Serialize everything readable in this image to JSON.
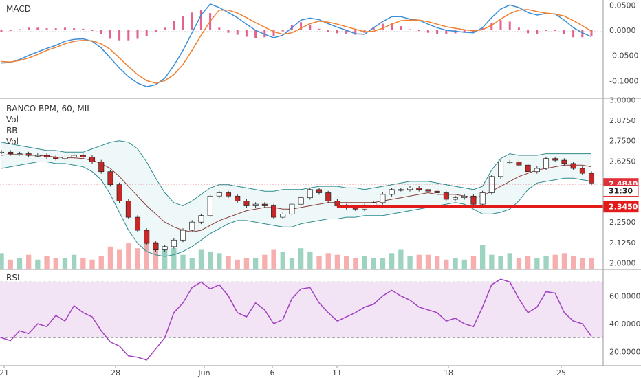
{
  "chart_data": [
    {
      "type": "line",
      "title": "MACD",
      "ylim": [
        -0.135,
        0.06
      ],
      "y_ticks": [
        "0.0500",
        "0.0000",
        "-0.0500",
        "-0.1000"
      ],
      "y_tick_values": [
        0.05,
        0.0,
        -0.05,
        -0.1
      ],
      "series": [
        {
          "role": "macd",
          "color": "#3a8dd8",
          "values": [
            -0.065,
            -0.064,
            -0.058,
            -0.05,
            -0.043,
            -0.036,
            -0.03,
            -0.022,
            -0.018,
            -0.017,
            -0.022,
            -0.035,
            -0.055,
            -0.075,
            -0.092,
            -0.105,
            -0.112,
            -0.108,
            -0.095,
            -0.07,
            -0.04,
            -0.005,
            0.03,
            0.052,
            0.045,
            0.035,
            0.025,
            0.012,
            0.0,
            -0.008,
            -0.015,
            -0.01,
            0.005,
            0.02,
            0.024,
            0.021,
            0.013,
            0.006,
            0.0,
            -0.007,
            -0.008,
            0.005,
            0.017,
            0.027,
            0.027,
            0.022,
            0.02,
            0.012,
            0.005,
            0.0,
            -0.002,
            -0.004,
            -0.005,
            0.005,
            0.025,
            0.042,
            0.05,
            0.045,
            0.035,
            0.03,
            0.033,
            0.032,
            0.02,
            0.005,
            -0.005,
            -0.013
          ]
        },
        {
          "role": "signal",
          "color": "#f08030",
          "values": [
            -0.062,
            -0.063,
            -0.06,
            -0.055,
            -0.048,
            -0.04,
            -0.034,
            -0.027,
            -0.022,
            -0.02,
            -0.021,
            -0.027,
            -0.038,
            -0.055,
            -0.072,
            -0.088,
            -0.1,
            -0.105,
            -0.1,
            -0.088,
            -0.068,
            -0.04,
            -0.01,
            0.018,
            0.04,
            0.04,
            0.034,
            0.025,
            0.015,
            0.006,
            -0.003,
            -0.008,
            -0.005,
            0.004,
            0.013,
            0.018,
            0.016,
            0.012,
            0.007,
            0.002,
            -0.003,
            -0.002,
            0.004,
            0.012,
            0.019,
            0.02,
            0.02,
            0.017,
            0.012,
            0.007,
            0.004,
            0.001,
            -0.001,
            0.001,
            0.01,
            0.022,
            0.033,
            0.04,
            0.041,
            0.037,
            0.034,
            0.032,
            0.028,
            0.019,
            0.009,
            -0.002
          ]
        },
        {
          "role": "histogram",
          "color": "#e0457b",
          "values": [
            -0.003,
            -0.001,
            0.002,
            0.005,
            0.005,
            0.004,
            0.004,
            0.005,
            0.004,
            0.003,
            -0.001,
            -0.008,
            -0.017,
            -0.02,
            -0.02,
            -0.017,
            -0.012,
            -0.003,
            0.005,
            0.018,
            0.028,
            0.035,
            0.04,
            0.034,
            0.005,
            -0.005,
            -0.009,
            -0.013,
            -0.015,
            -0.014,
            -0.012,
            -0.002,
            0.01,
            0.016,
            0.011,
            0.003,
            -0.003,
            -0.006,
            -0.007,
            -0.009,
            -0.005,
            0.007,
            0.013,
            0.015,
            0.008,
            0.002,
            0.0,
            -0.005,
            -0.007,
            -0.007,
            -0.006,
            -0.005,
            -0.004,
            0.004,
            0.015,
            0.02,
            0.017,
            0.005,
            -0.006,
            -0.007,
            -0.001,
            0.0,
            -0.008,
            -0.014,
            -0.014,
            -0.011
          ]
        }
      ]
    },
    {
      "type": "candlestick",
      "title": "BANCO BPM, 60, MIL",
      "indicator_labels": [
        "Vol",
        "BB",
        "Vol"
      ],
      "ylim": [
        1.96,
        3.01
      ],
      "y_ticks": [
        "3.0000",
        "2.8750",
        "2.7500",
        "2.6250",
        "2.2500",
        "2.1250",
        "2.0000"
      ],
      "y_tick_values": [
        3.0,
        2.875,
        2.75,
        2.625,
        2.25,
        2.125,
        2.0
      ],
      "price_tags": [
        {
          "label": "2.4840",
          "value": 2.484,
          "color": "#e0303a"
        },
        {
          "label": "31:30",
          "value": 2.443,
          "color": "#e0303a"
        },
        {
          "label": "2.3450",
          "value": 2.345,
          "color": "#e31a1a"
        }
      ],
      "horizontal_line": {
        "value": 2.345,
        "color": "#e31a1a"
      },
      "close": [
        2.68,
        2.67,
        2.67,
        2.66,
        2.66,
        2.65,
        2.64,
        2.65,
        2.66,
        2.65,
        2.62,
        2.56,
        2.48,
        2.38,
        2.28,
        2.2,
        2.12,
        2.08,
        2.1,
        2.14,
        2.2,
        2.25,
        2.29,
        2.41,
        2.43,
        2.41,
        2.38,
        2.35,
        2.36,
        2.35,
        2.28,
        2.3,
        2.36,
        2.4,
        2.45,
        2.43,
        2.38,
        2.35,
        2.34,
        2.33,
        2.35,
        2.37,
        2.42,
        2.45,
        2.45,
        2.46,
        2.45,
        2.44,
        2.43,
        2.39,
        2.4,
        2.41,
        2.36,
        2.43,
        2.53,
        2.62,
        2.62,
        2.6,
        2.56,
        2.58,
        2.64,
        2.63,
        2.61,
        2.58,
        2.55,
        2.49
      ],
      "bb_upper": [
        2.74,
        2.73,
        2.72,
        2.71,
        2.7,
        2.69,
        2.69,
        2.68,
        2.68,
        2.68,
        2.7,
        2.72,
        2.74,
        2.75,
        2.74,
        2.7,
        2.62,
        2.52,
        2.43,
        2.37,
        2.35,
        2.38,
        2.42,
        2.46,
        2.48,
        2.48,
        2.47,
        2.46,
        2.45,
        2.44,
        2.44,
        2.45,
        2.45,
        2.45,
        2.46,
        2.47,
        2.47,
        2.47,
        2.46,
        2.46,
        2.45,
        2.46,
        2.47,
        2.48,
        2.49,
        2.5,
        2.5,
        2.5,
        2.49,
        2.48,
        2.47,
        2.46,
        2.45,
        2.47,
        2.57,
        2.64,
        2.67,
        2.66,
        2.66,
        2.66,
        2.67,
        2.67,
        2.67,
        2.67,
        2.67,
        2.67
      ],
      "bb_mid": [
        2.66,
        2.665,
        2.665,
        2.66,
        2.66,
        2.655,
        2.65,
        2.645,
        2.645,
        2.64,
        2.63,
        2.61,
        2.58,
        2.53,
        2.47,
        2.41,
        2.35,
        2.3,
        2.25,
        2.22,
        2.2,
        2.19,
        2.2,
        2.23,
        2.26,
        2.28,
        2.3,
        2.32,
        2.33,
        2.34,
        2.34,
        2.33,
        2.33,
        2.34,
        2.35,
        2.36,
        2.37,
        2.37,
        2.37,
        2.37,
        2.37,
        2.37,
        2.38,
        2.39,
        2.4,
        2.41,
        2.42,
        2.43,
        2.42,
        2.42,
        2.42,
        2.41,
        2.4,
        2.41,
        2.44,
        2.47,
        2.5,
        2.53,
        2.55,
        2.57,
        2.58,
        2.59,
        2.6,
        2.6,
        2.6,
        2.59
      ],
      "bb_lower": [
        2.58,
        2.59,
        2.6,
        2.61,
        2.62,
        2.62,
        2.61,
        2.61,
        2.6,
        2.59,
        2.56,
        2.51,
        2.42,
        2.31,
        2.2,
        2.12,
        2.07,
        2.05,
        2.04,
        2.05,
        2.07,
        2.1,
        2.14,
        2.18,
        2.21,
        2.24,
        2.26,
        2.26,
        2.25,
        2.24,
        2.23,
        2.22,
        2.22,
        2.24,
        2.25,
        2.26,
        2.27,
        2.27,
        2.28,
        2.28,
        2.29,
        2.29,
        2.29,
        2.3,
        2.31,
        2.32,
        2.33,
        2.34,
        2.35,
        2.36,
        2.37,
        2.36,
        2.33,
        2.3,
        2.3,
        2.31,
        2.33,
        2.38,
        2.45,
        2.49,
        2.5,
        2.51,
        2.52,
        2.52,
        2.51,
        2.5
      ],
      "volume": [
        2.06,
        2.02,
        2.03,
        2.05,
        2.02,
        2.04,
        2.03,
        2.03,
        2.05,
        2.03,
        2.02,
        2.04,
        2.1,
        2.08,
        2.12,
        2.09,
        2.14,
        2.13,
        2.1,
        2.09,
        2.05,
        2.03,
        2.08,
        2.07,
        2.06,
        2.04,
        2.02,
        2.03,
        2.03,
        2.05,
        2.08,
        2.07,
        2.03,
        2.09,
        2.07,
        2.04,
        2.06,
        2.05,
        2.04,
        2.03,
        2.04,
        2.03,
        2.03,
        2.06,
        2.08,
        2.04,
        2.05,
        2.05,
        2.04,
        2.02,
        2.03,
        2.02,
        2.04,
        2.11,
        2.05,
        2.04,
        2.06,
        2.03,
        2.04,
        2.03,
        2.04,
        2.05,
        2.06,
        2.04,
        2.03,
        2.03
      ]
    },
    {
      "type": "line",
      "title": "RSI",
      "ylim": [
        10,
        79
      ],
      "y_ticks": [
        "60.0000",
        "40.0000",
        "20.0000"
      ],
      "y_tick_values": [
        60,
        40,
        20
      ],
      "band": [
        30,
        70
      ],
      "series": [
        {
          "role": "rsi",
          "color": "#a23fc0",
          "values": [
            30,
            28,
            35,
            33,
            40,
            38,
            46,
            42,
            53,
            48,
            45,
            35,
            27,
            24,
            17,
            16,
            14,
            22,
            30,
            48,
            55,
            66,
            70,
            65,
            68,
            60,
            48,
            45,
            55,
            50,
            40,
            43,
            58,
            65,
            66,
            55,
            48,
            42,
            45,
            48,
            52,
            54,
            60,
            64,
            60,
            57,
            52,
            50,
            48,
            42,
            44,
            40,
            38,
            52,
            68,
            72,
            70,
            58,
            48,
            52,
            63,
            62,
            48,
            42,
            40,
            31
          ]
        }
      ]
    }
  ],
  "x_ticks": [
    "21",
    "28",
    "Jun",
    "6",
    "11",
    "18",
    "25"
  ]
}
